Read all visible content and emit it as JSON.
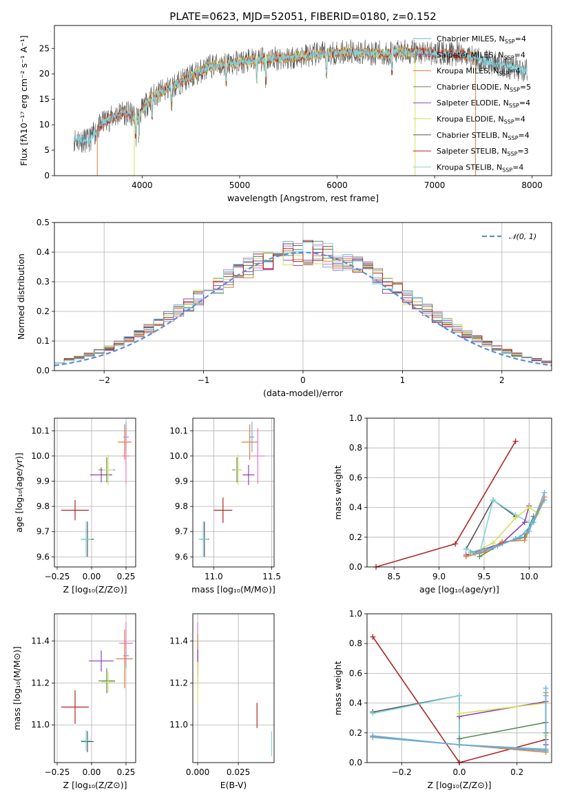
{
  "figure": {
    "title": "PLATE=0623, MJD=52051, FIBERID=0180, z=0.152"
  },
  "colors": {
    "chabrier_miles": "#6baed6",
    "salpeter_miles": "#9b59b6",
    "kroupa_miles": "#e07b39",
    "chabrier_elodie": "#5b8a5b",
    "salpeter_elodie": "#8e3fb0",
    "kroupa_elodie": "#d4e157",
    "chabrier_stelib": "#555555",
    "salpeter_stelib": "#b22222",
    "kroupa_stelib": "#7fd3e0",
    "normal_line": "#5b8bd6",
    "pink": "#e377c2"
  },
  "chart_data": [
    {
      "type": "line",
      "name": "spectrum",
      "title": "PLATE=0623, MJD=52051, FIBERID=0180, z=0.152",
      "xlabel": "wavelength [Angstrom, rest frame]",
      "ylabel": "Flux [fλ10⁻¹⁷ erg cm⁻² s⁻¹ A⁻¹]",
      "xlim": [
        3100,
        8200
      ],
      "ylim": [
        0,
        29.5
      ],
      "xticks": [
        4000,
        5000,
        6000,
        7000,
        8000
      ],
      "yticks": [
        0,
        5,
        10,
        15,
        20,
        25
      ],
      "grid": false,
      "legend_position": "top-right",
      "legend": [
        "Chabrier MILES, N_SSP=4",
        "Salpeter MILES, N_SSP=4",
        "Kroupa MILES, N_SSP=4",
        "Chabrier ELODIE, N_SSP=5",
        "Salpeter ELODIE, N_SSP=4",
        "Kroupa ELODIE, N_SSP=4",
        "Chabrier STELIB, N_SSP=4",
        "Salpeter STELIB, N_SSP=3",
        "Kroupa STELIB, N_SSP=4"
      ],
      "continuum": {
        "x": [
          3300,
          3450,
          3600,
          3800,
          3950,
          4100,
          4300,
          4500,
          4700,
          4900,
          5100,
          5300,
          5500,
          5700,
          5900,
          6100,
          6300,
          6500,
          6700,
          6900,
          7100,
          7300,
          7500,
          7700,
          7950
        ],
        "y": [
          7.2,
          6.8,
          10.5,
          12.5,
          11.5,
          15.5,
          17.5,
          19.5,
          21.5,
          22.0,
          22.5,
          23.0,
          23.2,
          23.6,
          24.0,
          24.3,
          24.2,
          24.0,
          24.3,
          24.2,
          24.0,
          23.8,
          22.5,
          21.8,
          20.5
        ]
      },
      "cutoffs": [
        {
          "x": 3540,
          "label": "Salpeter STELIB"
        },
        {
          "x": 3920,
          "label": "Kroupa ELODIE"
        },
        {
          "x": 6800,
          "label": "Kroupa ELODIE"
        },
        {
          "x": 7420,
          "label": "Salpeter STELIB"
        }
      ]
    },
    {
      "type": "histogram",
      "name": "residuals",
      "xlabel": "(data-model)/error",
      "ylabel": "Normed distribution",
      "xlim": [
        -2.5,
        2.5
      ],
      "ylim": [
        0,
        0.5
      ],
      "xticks": [
        -2,
        -1,
        0,
        1,
        2
      ],
      "yticks": [
        0.0,
        0.1,
        0.2,
        0.3,
        0.4,
        0.5
      ],
      "grid": true,
      "legend_position": "top-right",
      "legend": [
        "𝒩(0, 1)"
      ],
      "bin_width": 0.1
    },
    {
      "type": "errorbar",
      "name": "age-vs-Z",
      "xlabel": "Z [log₁₀(Z/Z⊙)]",
      "ylabel": "age  [log₁₀(age/yr)]",
      "xlim": [
        -0.27,
        0.32
      ],
      "ylim": [
        9.56,
        10.15
      ],
      "xticks": [
        -0.25,
        0.0,
        0.25
      ],
      "yticks": [
        9.6,
        9.7,
        9.8,
        9.9,
        10.0,
        10.1
      ],
      "grid": true,
      "points": [
        {
          "series": "Salpeter STELIB",
          "x": -0.12,
          "y": 9.785,
          "xerr": 0.1,
          "yerr": 0.04
        },
        {
          "series": "Chabrier STELIB",
          "x": -0.03,
          "y": 9.67,
          "xerr": 0.045,
          "yerr": 0.07
        },
        {
          "series": "Kroupa STELIB",
          "x": -0.04,
          "y": 9.67,
          "xerr": 0.04,
          "yerr": 0.07
        },
        {
          "series": "Salpeter ELODIE",
          "x": 0.07,
          "y": 9.925,
          "xerr": 0.08,
          "yerr": 0.03
        },
        {
          "series": "Chabrier ELODIE",
          "x": 0.11,
          "y": 9.945,
          "xerr": 0.06,
          "yerr": 0.05
        },
        {
          "series": "Kroupa ELODIE",
          "x": 0.12,
          "y": 9.945,
          "xerr": 0.04,
          "yerr": 0.06
        },
        {
          "series": "Kroupa MILES",
          "x": 0.24,
          "y": 10.055,
          "xerr": 0.05,
          "yerr": 0.07
        },
        {
          "series": "Chabrier MILES",
          "x": 0.25,
          "y": 10.075,
          "xerr": 0.02,
          "yerr": 0.06
        },
        {
          "series": "Salpeter MILES",
          "x": 0.25,
          "y": 10.0,
          "xerr": 0.03,
          "yerr": 0.11
        }
      ]
    },
    {
      "type": "errorbar",
      "name": "age-vs-mass",
      "xlabel": "mass [log₁₀(M/M⊙)]",
      "xlim": [
        10.82,
        11.52
      ],
      "ylim": [
        9.56,
        10.15
      ],
      "xticks": [
        11.0,
        11.5
      ],
      "yticks": [
        9.6,
        9.7,
        9.8,
        9.9,
        10.0,
        10.1
      ],
      "grid": true,
      "points": [
        {
          "series": "Salpeter STELIB",
          "x": 11.08,
          "y": 9.785,
          "xerr": 0.08,
          "yerr": 0.05
        },
        {
          "series": "Chabrier STELIB",
          "x": 10.92,
          "y": 9.67,
          "xerr": 0.04,
          "yerr": 0.07
        },
        {
          "series": "Kroupa STELIB",
          "x": 10.91,
          "y": 9.67,
          "xerr": 0.04,
          "yerr": 0.07
        },
        {
          "series": "Salpeter ELODIE",
          "x": 11.3,
          "y": 9.925,
          "xerr": 0.05,
          "yerr": 0.04
        },
        {
          "series": "Chabrier ELODIE",
          "x": 11.2,
          "y": 9.945,
          "xerr": 0.04,
          "yerr": 0.05
        },
        {
          "series": "Kroupa ELODIE",
          "x": 11.21,
          "y": 9.945,
          "xerr": 0.03,
          "yerr": 0.06
        },
        {
          "series": "Kroupa MILES",
          "x": 11.31,
          "y": 10.055,
          "xerr": 0.07,
          "yerr": 0.07
        },
        {
          "series": "Chabrier MILES",
          "x": 11.33,
          "y": 10.075,
          "xerr": 0.02,
          "yerr": 0.06
        },
        {
          "series": "Salpeter MILES",
          "x": 11.38,
          "y": 10.0,
          "xerr": 0.06,
          "yerr": 0.11
        }
      ]
    },
    {
      "type": "line",
      "name": "mass-weight-vs-age",
      "xlabel": "age  [log₁₀(age/yr)]",
      "ylabel": "mass weight",
      "xlim": [
        8.2,
        10.25
      ],
      "ylim": [
        0,
        1.0
      ],
      "xticks": [
        8.5,
        9.0,
        9.5,
        10.0
      ],
      "yticks": [
        0.0,
        0.2,
        0.4,
        0.6,
        0.8,
        1.0
      ],
      "grid": true,
      "series": [
        {
          "key": "salpeter_stelib",
          "x": [
            8.3,
            9.18,
            9.85
          ],
          "y": [
            0.0,
            0.155,
            0.845
          ]
        },
        {
          "key": "chabrier_stelib",
          "x": [
            9.3,
            9.6,
            9.85
          ],
          "y": [
            0.12,
            0.45,
            0.34
          ]
        },
        {
          "key": "kroupa_stelib",
          "x": [
            9.3,
            9.45,
            9.6,
            9.85,
            10.0
          ],
          "y": [
            0.12,
            0.09,
            0.45,
            0.35,
            0.3
          ]
        },
        {
          "key": "chabrier_elodie",
          "x": [
            9.45,
            9.7,
            9.95,
            10.05
          ],
          "y": [
            0.07,
            0.16,
            0.2,
            0.34
          ]
        },
        {
          "key": "salpeter_elodie",
          "x": [
            9.3,
            9.5,
            9.7,
            9.95,
            10.0
          ],
          "y": [
            0.08,
            0.12,
            0.16,
            0.3,
            0.41
          ]
        },
        {
          "key": "kroupa_elodie",
          "x": [
            9.35,
            9.6,
            9.85,
            10.0,
            10.1
          ],
          "y": [
            0.09,
            0.16,
            0.33,
            0.4,
            0.36
          ]
        },
        {
          "key": "kroupa_miles",
          "x": [
            9.3,
            9.5,
            9.7,
            9.95,
            10.17
          ],
          "y": [
            0.07,
            0.1,
            0.17,
            0.18,
            0.47
          ]
        },
        {
          "key": "chabrier_miles",
          "x": [
            9.35,
            9.6,
            9.85,
            10.0,
            10.17
          ],
          "y": [
            0.1,
            0.13,
            0.19,
            0.24,
            0.5
          ]
        },
        {
          "key": "salpeter_miles",
          "x": [
            9.4,
            9.65,
            9.9,
            10.05,
            10.17
          ],
          "y": [
            0.09,
            0.14,
            0.2,
            0.3,
            0.45
          ]
        }
      ]
    },
    {
      "type": "errorbar",
      "name": "mass-vs-Z",
      "xlabel": "Z [log₁₀(Z/Z⊙)]",
      "ylabel": "mass [log₁₀(M/M⊙)]",
      "xlim": [
        -0.27,
        0.32
      ],
      "ylim": [
        10.82,
        11.53
      ],
      "xticks": [
        -0.25,
        0.0,
        0.25
      ],
      "yticks": [
        11.0,
        11.2,
        11.4
      ],
      "grid": true,
      "points": [
        {
          "series": "Salpeter STELIB",
          "x": -0.12,
          "y": 11.085,
          "xerr": 0.1,
          "yerr": 0.08
        },
        {
          "series": "Chabrier STELIB",
          "x": -0.03,
          "y": 10.92,
          "xerr": 0.045,
          "yerr": 0.05
        },
        {
          "series": "Kroupa STELIB",
          "x": -0.04,
          "y": 10.925,
          "xerr": 0.04,
          "yerr": 0.05
        },
        {
          "series": "Salpeter ELODIE",
          "x": 0.07,
          "y": 11.305,
          "xerr": 0.09,
          "yerr": 0.05
        },
        {
          "series": "Chabrier ELODIE",
          "x": 0.11,
          "y": 11.21,
          "xerr": 0.06,
          "yerr": 0.06
        },
        {
          "series": "Kroupa ELODIE",
          "x": 0.12,
          "y": 11.205,
          "xerr": 0.05,
          "yerr": 0.05
        },
        {
          "series": "Kroupa MILES",
          "x": 0.24,
          "y": 11.315,
          "xerr": 0.06,
          "yerr": 0.14
        },
        {
          "series": "Chabrier MILES",
          "x": 0.25,
          "y": 11.33,
          "xerr": 0.02,
          "yerr": 0.06
        },
        {
          "series": "Salpeter MILES",
          "x": 0.25,
          "y": 11.39,
          "xerr": 0.05,
          "yerr": 0.1
        }
      ]
    },
    {
      "type": "errorbar",
      "name": "mass-vs-EBV",
      "xlabel": "E(B-V)",
      "xlim": [
        -0.003,
        0.047
      ],
      "ylim": [
        10.82,
        11.53
      ],
      "xticks": [
        0.0,
        0.025
      ],
      "xticklabels": [
        "0.000",
        "0.025"
      ],
      "yticks": [
        11.0,
        11.2,
        11.4
      ],
      "grid": true,
      "points": [
        {
          "series": "Chabrier MILES",
          "x": 0.0,
          "y": 11.33,
          "xerr": 0,
          "yerr": 0.06
        },
        {
          "series": "Salpeter MILES",
          "x": 0.0,
          "y": 11.39,
          "xerr": 0,
          "yerr": 0.1
        },
        {
          "series": "Kroupa MILES",
          "x": 0.0,
          "y": 11.315,
          "xerr": 0,
          "yerr": 0.12
        },
        {
          "series": "Salpeter ELODIE",
          "x": 0.0,
          "y": 11.3,
          "xerr": 0,
          "yerr": 0.06
        },
        {
          "series": "Kroupa ELODIE",
          "x": 0.0,
          "y": 11.2,
          "xerr": 0,
          "yerr": 0.1
        },
        {
          "series": "Salpeter STELIB",
          "x": 0.0365,
          "y": 11.045,
          "xerr": 0,
          "yerr": 0.06
        },
        {
          "series": "Kroupa STELIB",
          "x": 0.0455,
          "y": 10.91,
          "xerr": 0,
          "yerr": 0.06
        }
      ]
    },
    {
      "type": "line",
      "name": "mass-weight-vs-Z",
      "xlabel": "Z [log₁₀(Z/Z⊙)]",
      "ylabel": "mass weight",
      "xlim": [
        -0.32,
        0.32
      ],
      "ylim": [
        0,
        1.0
      ],
      "xticks": [
        -0.2,
        0.0,
        0.2
      ],
      "yticks": [
        0.0,
        0.2,
        0.4,
        0.6,
        0.8,
        1.0
      ],
      "grid": true,
      "series": [
        {
          "key": "salpeter_stelib",
          "x": [
            -0.3,
            0.0,
            0.3
          ],
          "y": [
            0.845,
            0.0,
            0.155
          ]
        },
        {
          "key": "chabrier_stelib",
          "x": [
            -0.3,
            0.0,
            0.0,
            0.3
          ],
          "y": [
            0.34,
            0.45,
            0.12,
            0.08
          ]
        },
        {
          "key": "kroupa_stelib",
          "x": [
            -0.3,
            0.0,
            0.0,
            0.3
          ],
          "y": [
            0.33,
            0.45,
            0.12,
            0.09
          ]
        },
        {
          "key": "chabrier_elodie",
          "x": [
            0.0,
            0.3,
            0.3
          ],
          "y": [
            0.16,
            0.27,
            0.2
          ]
        },
        {
          "key": "salpeter_elodie",
          "x": [
            0.0,
            0.3,
            0.3
          ],
          "y": [
            0.31,
            0.41,
            0.12
          ]
        },
        {
          "key": "kroupa_elodie",
          "x": [
            0.0,
            0.3,
            0.3
          ],
          "y": [
            0.33,
            0.4,
            0.18
          ]
        },
        {
          "key": "kroupa_miles",
          "x": [
            -0.3,
            0.0,
            0.3,
            0.3
          ],
          "y": [
            0.175,
            0.12,
            0.07,
            0.47
          ]
        },
        {
          "key": "chabrier_miles",
          "x": [
            -0.3,
            0.0,
            0.3,
            0.3
          ],
          "y": [
            0.18,
            0.12,
            0.09,
            0.5
          ]
        },
        {
          "key": "salpeter_miles",
          "x": [
            -0.3,
            0.0,
            0.3,
            0.3
          ],
          "y": [
            0.17,
            0.12,
            0.08,
            0.45
          ]
        }
      ]
    }
  ]
}
